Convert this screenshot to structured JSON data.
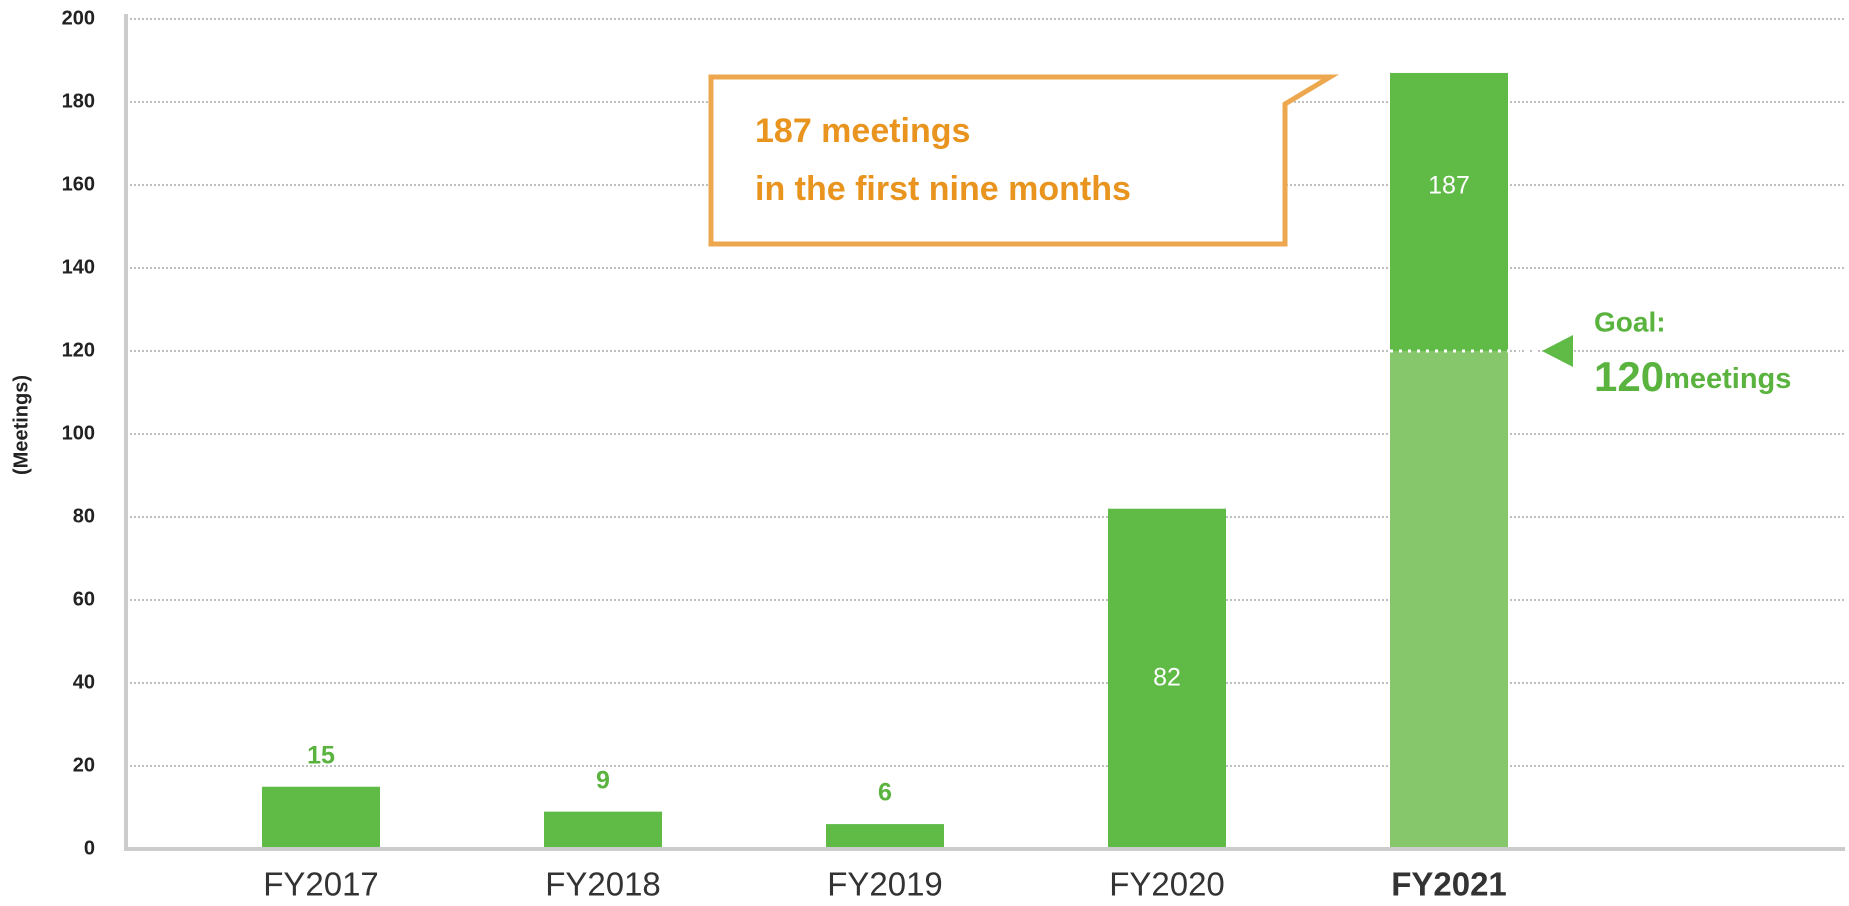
{
  "chart_data": {
    "type": "bar",
    "y_label": "(Meetings)",
    "categories": [
      "FY2017",
      "FY2018",
      "FY2019",
      "FY2020",
      "FY2021"
    ],
    "values": [
      15,
      9,
      6,
      82,
      187
    ],
    "color": "#5fba46",
    "ylim": [
      0,
      200
    ],
    "yticks": [
      0,
      20,
      40,
      60,
      80,
      100,
      120,
      140,
      160,
      180,
      200
    ],
    "grid": true,
    "highlight_index": 4,
    "goal": {
      "label": "Goal:",
      "value": 120,
      "unit": "meetings",
      "color": "#86c76b"
    },
    "callout": [
      "187 meetings",
      "in the first nine months"
    ]
  }
}
